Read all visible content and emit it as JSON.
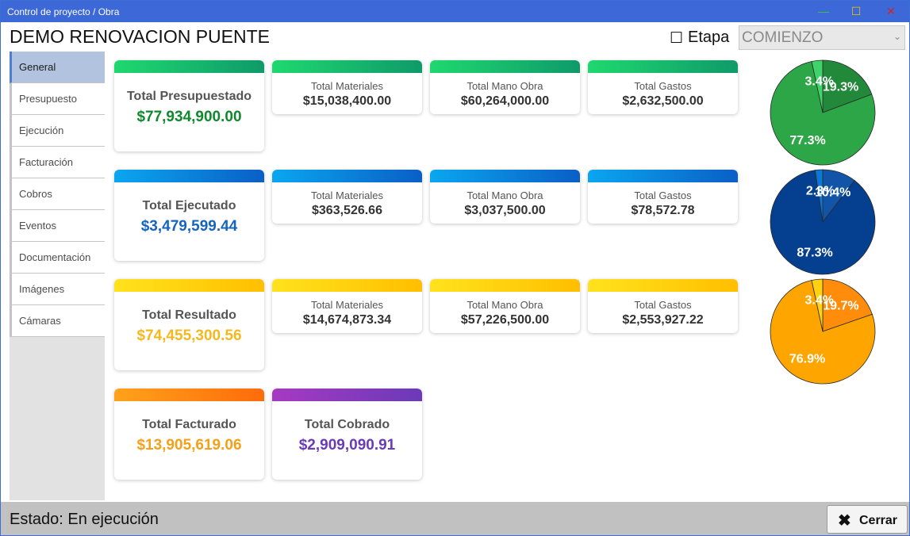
{
  "window": {
    "title": "Control de proyecto / Obra"
  },
  "header": {
    "title": "DEMO RENOVACION PUENTE"
  },
  "stage": {
    "label": "Etapa",
    "check": "☐",
    "selected": "COMIENZO"
  },
  "sidebar": {
    "items": [
      {
        "label": "General",
        "active": true
      },
      {
        "label": "Presupuesto"
      },
      {
        "label": "Ejecución"
      },
      {
        "label": "Facturación"
      },
      {
        "label": "Cobros"
      },
      {
        "label": "Eventos"
      },
      {
        "label": "Documentación"
      },
      {
        "label": "Imágenes"
      },
      {
        "label": "Cámaras"
      }
    ]
  },
  "cards": {
    "presupuestado": {
      "title": "Total Presupuestado",
      "value": "$77,934,900.00",
      "materiales_label": "Total Materiales",
      "materiales": "$15,038,400.00",
      "mano_label": "Total Mano Obra",
      "mano": "$60,264,000.00",
      "gastos_label": "Total Gastos",
      "gastos": "$2,632,500.00"
    },
    "ejecutado": {
      "title": "Total Ejecutado",
      "value": "$3,479,599.44",
      "materiales_label": "Total Materiales",
      "materiales": "$363,526.66",
      "mano_label": "Total Mano Obra",
      "mano": "$3,037,500.00",
      "gastos_label": "Total Gastos",
      "gastos": "$78,572.78"
    },
    "resultado": {
      "title": "Total Resultado",
      "value": "$74,455,300.56",
      "materiales_label": "Total Materiales",
      "materiales": "$14,674,873.34",
      "mano_label": "Total Mano Obra",
      "mano": "$57,226,500.00",
      "gastos_label": "Total Gastos",
      "gastos": "$2,553,927.22"
    },
    "facturado": {
      "title": "Total Facturado",
      "value": "$13,905,619.06"
    },
    "cobrado": {
      "title": "Total Cobrado",
      "value": "$2,909,090.91"
    }
  },
  "colors": {
    "presupuestado": "#0e8a2c",
    "ejecutado": "#1565c0",
    "resultado": "#f5b81e",
    "facturado": "#f5a018",
    "cobrado": "#6a3ab7"
  },
  "chart_data": [
    {
      "type": "pie",
      "labels": [
        "19.3%",
        "77.3%",
        "3.4%"
      ],
      "values": [
        19.3,
        77.3,
        3.4
      ],
      "colors": [
        "#22883a",
        "#2ca646",
        "#3fd46a"
      ]
    },
    {
      "type": "pie",
      "labels": [
        "10.4%",
        "87.3%",
        "2.3%"
      ],
      "values": [
        10.4,
        87.3,
        2.3
      ],
      "colors": [
        "#1255a8",
        "#053f8f",
        "#0a78d8"
      ]
    },
    {
      "type": "pie",
      "labels": [
        "19.7%",
        "76.9%",
        "3.4%"
      ],
      "values": [
        19.7,
        76.9,
        3.4
      ],
      "colors": [
        "#ff8c0a",
        "#ffa500",
        "#ffd10f"
      ]
    }
  ],
  "status": {
    "text": "Estado: En ejecución"
  },
  "footer": {
    "close_icon": "✖",
    "close_label": "Cerrar"
  }
}
